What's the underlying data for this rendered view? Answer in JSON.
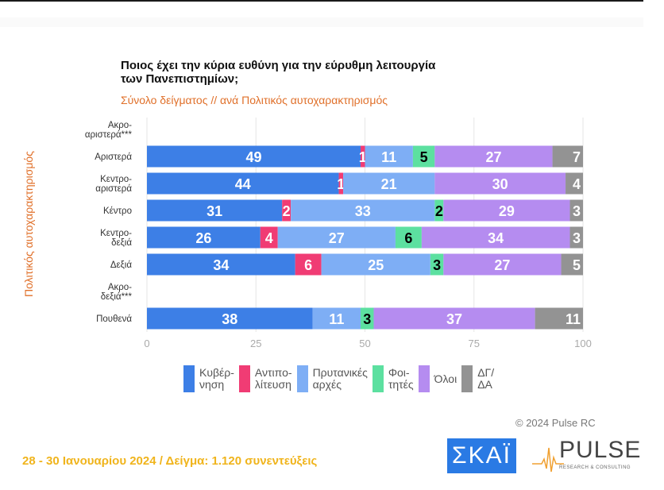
{
  "chart_data": {
    "type": "bar",
    "orientation": "horizontal-stacked",
    "title": "Ποιος έχει την κύρια ευθύνη για την εύρυθμη λειτουργία των Πανεπιστημίων;",
    "subtitle": "Σύνολο δείγματος // ανά Πολιτικός αυτοχαρακτηρισμός",
    "ylabel": "Πολιτικός αυτοχαρακτηρισμός",
    "xlabel": "",
    "xlim": [
      0,
      100
    ],
    "xticks": [
      "0",
      "25",
      "50",
      "75",
      "100"
    ],
    "xtick_values": [
      0,
      25,
      50,
      75,
      100
    ],
    "grid": true,
    "legend_position": "bottom",
    "categories": [
      [
        "Ακρο-",
        "αριστερά***"
      ],
      [
        "Αριστερά"
      ],
      [
        "Κεντρο-",
        "αριστερά"
      ],
      [
        "Κέντρο"
      ],
      [
        "Κεντρο-",
        "δεξιά"
      ],
      [
        "Δεξιά"
      ],
      [
        "Ακρο-",
        "δεξιά***"
      ],
      [
        "Πουθενά"
      ]
    ],
    "series": [
      {
        "name": [
          "Κυβέρ-",
          "νηση"
        ],
        "color": "#3d7fe6",
        "label_color": "#ffffff",
        "values": [
          null,
          49,
          44,
          31,
          26,
          34,
          null,
          38
        ]
      },
      {
        "name": [
          "Αντιπο-",
          "λίτευση"
        ],
        "color": "#f03c74",
        "label_color": "#ffffff",
        "values": [
          null,
          1,
          1,
          2,
          4,
          6,
          null,
          0
        ]
      },
      {
        "name": [
          "Πρυτανικές",
          "αρχές"
        ],
        "color": "#7eaef5",
        "label_color": "#ffffff",
        "values": [
          null,
          11,
          21,
          33,
          27,
          25,
          null,
          11
        ]
      },
      {
        "name": [
          "Φοι-",
          "τητές"
        ],
        "color": "#5ce0a0",
        "label_color": "#000000",
        "values": [
          null,
          5,
          0,
          2,
          6,
          3,
          null,
          3
        ]
      },
      {
        "name": [
          "Όλοι"
        ],
        "color": "#b58cf0",
        "label_color": "#ffffff",
        "values": [
          null,
          27,
          30,
          29,
          34,
          27,
          null,
          37
        ]
      },
      {
        "name": [
          "ΔΓ/",
          "ΔΑ"
        ],
        "color": "#939393",
        "label_color": "#ffffff",
        "values": [
          null,
          7,
          4,
          3,
          3,
          5,
          null,
          11
        ]
      }
    ]
  },
  "copyright": "© 2024 Pulse RC",
  "footer": "28 - 30 Ιανουαρίου 2024  /  Δείγμα:  1.120 συνεντεύξεις",
  "logos": {
    "skai": "ΣΚΑΪ",
    "pulse": "PULSE",
    "pulse_tagline": "RESEARCH & CONSULTING"
  }
}
